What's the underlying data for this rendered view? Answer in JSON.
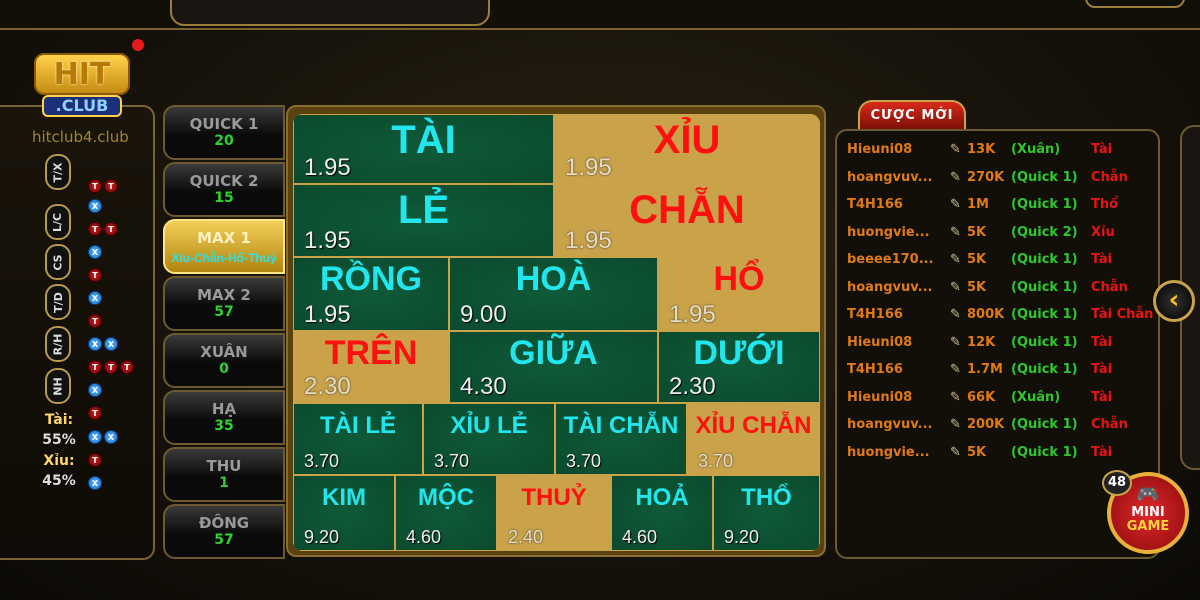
{
  "brand": {
    "logo_text": "HIT",
    "logo_sub": ".CLUB",
    "watermark": "hitclub4.club"
  },
  "colors": {
    "green_cell": "#0b4a2e",
    "gold_cell": "#c9a24a",
    "cyan_text": "#22e6ee",
    "red_text": "#ff1010",
    "tab_count": "#2fd22f"
  },
  "stats": {
    "road_labels": [
      "T/X",
      "L/C",
      "CS",
      "T/D",
      "R/H",
      "NH"
    ],
    "beads": [
      [
        "T",
        "T"
      ],
      [
        "X"
      ],
      [
        "T",
        "T"
      ],
      [
        "X"
      ],
      [
        "T"
      ],
      [
        "X"
      ],
      [
        "T"
      ],
      [
        "X",
        "X"
      ],
      [
        "T",
        "T",
        "T"
      ],
      [
        "X"
      ],
      [
        "T"
      ],
      [
        "X",
        "X"
      ],
      [
        "T"
      ],
      [
        "X"
      ]
    ],
    "tai_label": "Tài:",
    "tai_pct": "55%",
    "xiu_label": "Xỉu:",
    "xiu_pct": "45%"
  },
  "tabs": [
    {
      "name": "QUICK 1",
      "count": "20"
    },
    {
      "name": "QUICK 2",
      "count": "15"
    },
    {
      "name": "MAX 1",
      "count": "Xỉu-Chẵn-Hổ-Thuỷ",
      "active": true
    },
    {
      "name": "MAX 2",
      "count": "57"
    },
    {
      "name": "XUÂN",
      "count": "0"
    },
    {
      "name": "HẠ",
      "count": "35"
    },
    {
      "name": "THU",
      "count": "1"
    },
    {
      "name": "ĐÔNG",
      "count": "57"
    }
  ],
  "board": [
    {
      "name": "TÀI",
      "odds": "1.95",
      "style": "green"
    },
    {
      "name": "XỈU",
      "odds": "1.95",
      "style": "gold"
    },
    {
      "name": "LẺ",
      "odds": "1.95",
      "style": "green"
    },
    {
      "name": "CHẴN",
      "odds": "1.95",
      "style": "gold"
    },
    {
      "name": "RỒNG",
      "odds": "1.95",
      "style": "green"
    },
    {
      "name": "HOÀ",
      "odds": "9.00",
      "style": "green"
    },
    {
      "name": "HỔ",
      "odds": "1.95",
      "style": "gold"
    },
    {
      "name": "TRÊN",
      "odds": "2.30",
      "style": "gold"
    },
    {
      "name": "GIỮA",
      "odds": "4.30",
      "style": "green"
    },
    {
      "name": "DƯỚI",
      "odds": "2.30",
      "style": "green"
    },
    {
      "name": "TÀI LẺ",
      "odds": "3.70",
      "style": "green"
    },
    {
      "name": "XỈU LẺ",
      "odds": "3.70",
      "style": "green"
    },
    {
      "name": "TÀI CHẴN",
      "odds": "3.70",
      "style": "green"
    },
    {
      "name": "XỈU CHẴN",
      "odds": "3.70",
      "style": "gold"
    },
    {
      "name": "KIM",
      "odds": "9.20",
      "style": "green"
    },
    {
      "name": "MỘC",
      "odds": "4.60",
      "style": "green"
    },
    {
      "name": "THUỶ",
      "odds": "2.40",
      "style": "gold"
    },
    {
      "name": "HOẢ",
      "odds": "4.60",
      "style": "green"
    },
    {
      "name": "THỔ",
      "odds": "9.20",
      "style": "green"
    }
  ],
  "feed": {
    "title": "CƯỢC MỚI",
    "bets": [
      {
        "user": "Hieuni08",
        "amount": "13K",
        "table": "(Xuân)",
        "pick": "Tài"
      },
      {
        "user": "hoangvuv...",
        "amount": "270K",
        "table": "(Quick 1)",
        "pick": "Chẵn"
      },
      {
        "user": "T4H166",
        "amount": "1M",
        "table": "(Quick 1)",
        "pick": "Thổ"
      },
      {
        "user": "huongvie...",
        "amount": "5K",
        "table": "(Quick 2)",
        "pick": "Xỉu"
      },
      {
        "user": "beeee170...",
        "amount": "5K",
        "table": "(Quick 1)",
        "pick": "Tài"
      },
      {
        "user": "hoangvuv...",
        "amount": "5K",
        "table": "(Quick 1)",
        "pick": "Chẵn"
      },
      {
        "user": "T4H166",
        "amount": "800K",
        "table": "(Quick 1)",
        "pick": "Tài Chẵn"
      },
      {
        "user": "Hieuni08",
        "amount": "12K",
        "table": "(Quick 1)",
        "pick": "Tài"
      },
      {
        "user": "T4H166",
        "amount": "1.7M",
        "table": "(Quick 1)",
        "pick": "Tài"
      },
      {
        "user": "Hieuni08",
        "amount": "66K",
        "table": "(Xuân)",
        "pick": "Tài"
      },
      {
        "user": "hoangvuv...",
        "amount": "200K",
        "table": "(Quick 1)",
        "pick": "Chẵn"
      },
      {
        "user": "huongvie...",
        "amount": "5K",
        "table": "(Quick 1)",
        "pick": "Tài"
      }
    ]
  },
  "minigame": {
    "badge": "48",
    "line1": "MINI",
    "line2": "GAME",
    "icon": "gamepad-icon"
  },
  "nav": {
    "back_icon": "chevron-left-icon",
    "back_glyph": "‹"
  }
}
